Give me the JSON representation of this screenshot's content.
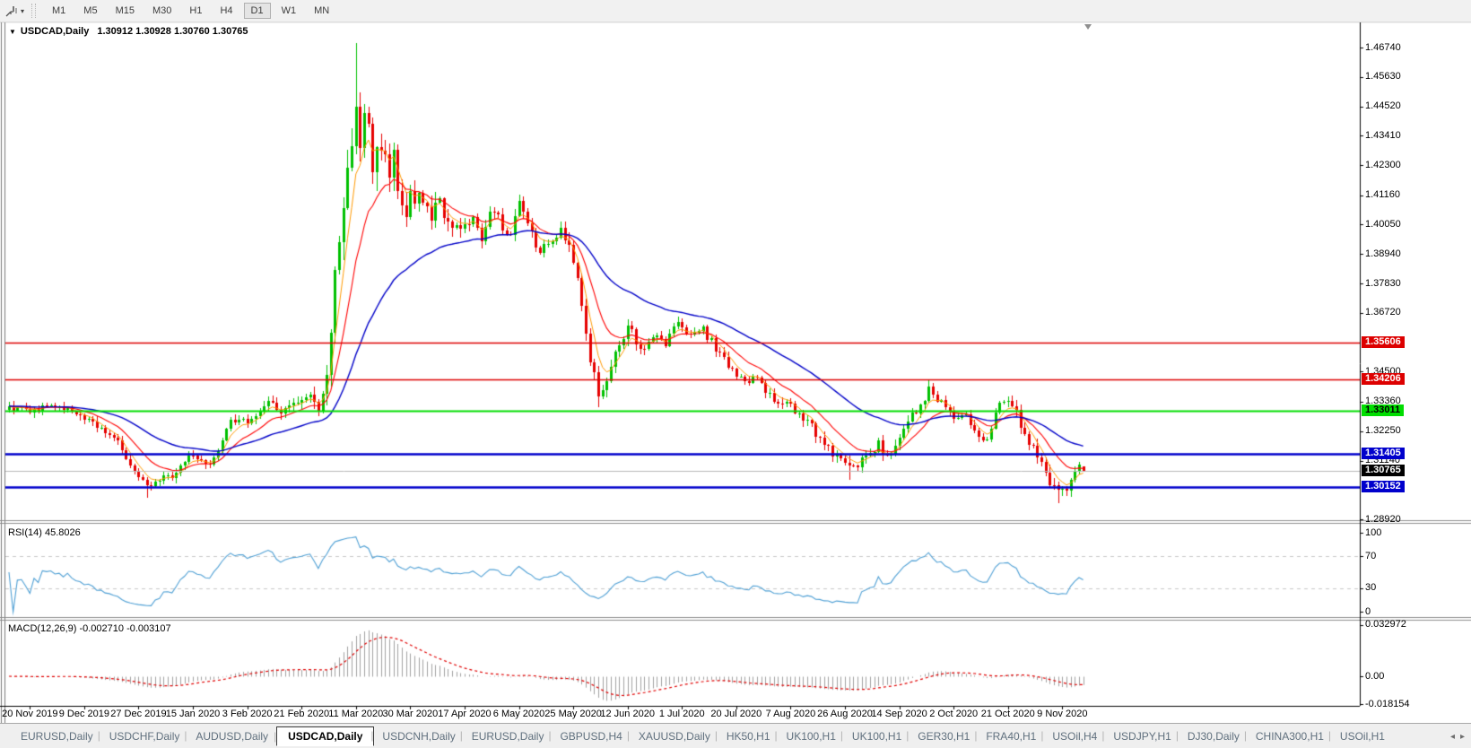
{
  "icons": {
    "title_caret": "▼",
    "toolbar_caret": "▾",
    "tab_scroll_left": "◂",
    "tab_scroll_right": "▸"
  },
  "toolbar": {
    "timeframes": [
      {
        "label": "M1",
        "active": false
      },
      {
        "label": "M5",
        "active": false
      },
      {
        "label": "M15",
        "active": false
      },
      {
        "label": "M30",
        "active": false
      },
      {
        "label": "H1",
        "active": false
      },
      {
        "label": "H4",
        "active": false
      },
      {
        "label": "D1",
        "active": true
      },
      {
        "label": "W1",
        "active": false
      },
      {
        "label": "MN",
        "active": false
      }
    ]
  },
  "chart": {
    "title": "USDCAD,Daily",
    "ohlc": "1.30912 1.30928 1.30760 1.30765",
    "price_axis": {
      "ticks": [
        "1.46740",
        "1.45630",
        "1.44520",
        "1.43410",
        "1.42300",
        "1.41160",
        "1.40050",
        "1.38940",
        "1.37830",
        "1.36720",
        "1.34500",
        "1.33360",
        "1.32250",
        "1.31140",
        "1.28920"
      ],
      "tags": [
        {
          "label": "1.35606",
          "bg": "#dd0000",
          "fg": "#ffffff"
        },
        {
          "label": "1.34206",
          "bg": "#dd0000",
          "fg": "#ffffff"
        },
        {
          "label": "1.33011",
          "bg": "#00dd00",
          "fg": "#000000"
        },
        {
          "label": "1.31405",
          "bg": "#0000cc",
          "fg": "#ffffff"
        },
        {
          "label": "1.30765",
          "bg": "#000000",
          "fg": "#ffffff"
        },
        {
          "label": "1.30152",
          "bg": "#0000cc",
          "fg": "#ffffff"
        }
      ]
    },
    "rsi": {
      "label": "RSI(14) 45.8026",
      "ticks": [
        "100",
        "70",
        "30",
        "0"
      ]
    },
    "macd": {
      "label": "MACD(12,26,9) -0.002710 -0.003107",
      "ticks": [
        "0.032972",
        "0.00",
        "-0.018154"
      ]
    },
    "date_axis": [
      "20 Nov 2019",
      "9 Dec 2019",
      "27 Dec 2019",
      "15 Jan 2020",
      "3 Feb 2020",
      "21 Feb 2020",
      "11 Mar 2020",
      "30 Mar 2020",
      "17 Apr 2020",
      "6 May 2020",
      "25 May 2020",
      "12 Jun 2020",
      "1 Jul 2020",
      "20 Jul 2020",
      "7 Aug 2020",
      "26 Aug 2020",
      "14 Sep 2020",
      "2 Oct 2020",
      "21 Oct 2020",
      "9 Nov 2020"
    ]
  },
  "tabs": {
    "items": [
      {
        "label": "EURUSD,Daily",
        "active": false
      },
      {
        "label": "USDCHF,Daily",
        "active": false
      },
      {
        "label": "AUDUSD,Daily",
        "active": false
      },
      {
        "label": "USDCAD,Daily",
        "active": true
      },
      {
        "label": "USDCNH,Daily",
        "active": false
      },
      {
        "label": "EURUSD,Daily",
        "active": false
      },
      {
        "label": "GBPUSD,H4",
        "active": false
      },
      {
        "label": "XAUUSD,Daily",
        "active": false
      },
      {
        "label": "HK50,H1",
        "active": false
      },
      {
        "label": "UK100,H1",
        "active": false
      },
      {
        "label": "UK100,H1",
        "active": false
      },
      {
        "label": "GER30,H1",
        "active": false
      },
      {
        "label": "FRA40,H1",
        "active": false
      },
      {
        "label": "USOil,H4",
        "active": false
      },
      {
        "label": "USDJPY,H1",
        "active": false
      },
      {
        "label": "DJ30,Daily",
        "active": false
      },
      {
        "label": "CHINA300,H1",
        "active": false
      },
      {
        "label": "USOil,H1",
        "active": false
      }
    ]
  },
  "chart_data": {
    "type": "candlestick",
    "symbol": "USDCAD",
    "timeframe": "Daily",
    "current_bar": {
      "open": 1.30912,
      "high": 1.30928,
      "low": 1.3076,
      "close": 1.30765
    },
    "price_axis_range": [
      1.2892,
      1.4674
    ],
    "up_color": "#00c000",
    "down_color": "#e60000",
    "horizontal_lines": [
      {
        "price": 1.35606,
        "color": "#dd0000",
        "width": 1.6
      },
      {
        "price": 1.34206,
        "color": "#dd0000",
        "width": 1.6
      },
      {
        "price": 1.33011,
        "color": "#00dd00",
        "width": 2
      },
      {
        "price": 1.31405,
        "color": "#0000cc",
        "width": 2.4
      },
      {
        "price": 1.30152,
        "color": "#0000cc",
        "width": 2.4
      }
    ],
    "moving_averages": [
      {
        "period": 5,
        "color": "#ff9900"
      },
      {
        "period": 13,
        "color": "#ff0000"
      },
      {
        "period": 40,
        "color": "#0000c8"
      }
    ],
    "indicators": {
      "rsi": {
        "period": 14,
        "value": 45.8026,
        "levels": [
          70,
          30
        ],
        "color": "#4e9fd4"
      },
      "macd": {
        "fast": 12,
        "slow": 26,
        "signal": 9,
        "value": -0.00271,
        "signal_value": -0.003107,
        "axis_max": 0.032972,
        "axis_min": -0.018154,
        "hist_color": "#a0a0a0",
        "signal_color": "#e00000"
      }
    },
    "candle_count": 258,
    "close_anchors": [
      [
        0,
        1.332
      ],
      [
        6,
        1.3305
      ],
      [
        10,
        1.333
      ],
      [
        15,
        1.33
      ],
      [
        19,
        1.3262
      ],
      [
        24,
        1.321
      ],
      [
        27,
        1.316
      ],
      [
        30,
        1.3065
      ],
      [
        33,
        1.3005
      ],
      [
        36,
        1.304
      ],
      [
        39,
        1.3055
      ],
      [
        43,
        1.312
      ],
      [
        48,
        1.3105
      ],
      [
        53,
        1.3255
      ],
      [
        57,
        1.327
      ],
      [
        62,
        1.333
      ],
      [
        66,
        1.33
      ],
      [
        69,
        1.334
      ],
      [
        72,
        1.336
      ],
      [
        74,
        1.329
      ],
      [
        76,
        1.342
      ],
      [
        78,
        1.379
      ],
      [
        79,
        1.392
      ],
      [
        82,
        1.435
      ],
      [
        83,
        1.451
      ],
      [
        84,
        1.428
      ],
      [
        85,
        1.446
      ],
      [
        87,
        1.418
      ],
      [
        89,
        1.433
      ],
      [
        91,
        1.416
      ],
      [
        92,
        1.428
      ],
      [
        94,
        1.406
      ],
      [
        98,
        1.413
      ],
      [
        101,
        1.402
      ],
      [
        103,
        1.409
      ],
      [
        104,
        1.4056
      ],
      [
        107,
        1.398
      ],
      [
        111,
        1.401
      ],
      [
        113,
        1.393
      ],
      [
        115,
        1.405
      ],
      [
        117,
        1.403
      ],
      [
        120,
        1.395
      ],
      [
        122,
        1.408
      ],
      [
        124,
        1.402
      ],
      [
        127,
        1.39
      ],
      [
        130,
        1.3947
      ],
      [
        132,
        1.398
      ],
      [
        135,
        1.388
      ],
      [
        138,
        1.357
      ],
      [
        140,
        1.342
      ],
      [
        141,
        1.3345
      ],
      [
        143,
        1.343
      ],
      [
        146,
        1.355
      ],
      [
        148,
        1.362
      ],
      [
        150,
        1.357
      ],
      [
        152,
        1.353
      ],
      [
        154,
        1.359
      ],
      [
        157,
        1.356
      ],
      [
        160,
        1.363
      ],
      [
        163,
        1.358
      ],
      [
        166,
        1.361
      ],
      [
        168,
        1.356
      ],
      [
        170,
        1.351
      ],
      [
        173,
        1.345
      ],
      [
        176,
        1.34
      ],
      [
        179,
        1.342
      ],
      [
        181,
        1.338
      ],
      [
        184,
        1.333
      ],
      [
        186,
        1.335
      ],
      [
        188,
        1.33
      ],
      [
        191,
        1.326
      ],
      [
        193,
        1.322
      ],
      [
        197,
        1.314
      ],
      [
        199,
        1.3105
      ],
      [
        201,
        1.3075
      ],
      [
        203,
        1.309
      ],
      [
        206,
        1.314
      ],
      [
        208,
        1.318
      ],
      [
        210,
        1.3125
      ],
      [
        212,
        1.316
      ],
      [
        214,
        1.322
      ],
      [
        217,
        1.331
      ],
      [
        220,
        1.338
      ],
      [
        222,
        1.335
      ],
      [
        224,
        1.331
      ],
      [
        226,
        1.327
      ],
      [
        228,
        1.33
      ],
      [
        230,
        1.325
      ],
      [
        232,
        1.32
      ],
      [
        234,
        1.318
      ],
      [
        236,
        1.331
      ],
      [
        238,
        1.335
      ],
      [
        240,
        1.332
      ],
      [
        242,
        1.325
      ],
      [
        245,
        1.315
      ],
      [
        247,
        1.312
      ],
      [
        248,
        1.308
      ],
      [
        250,
        1.2998
      ],
      [
        251,
        1.2978
      ],
      [
        252,
        1.299
      ],
      [
        253,
        1.301
      ],
      [
        254,
        1.305
      ],
      [
        256,
        1.309
      ],
      [
        257,
        1.3077
      ]
    ],
    "volatility_anchors": [
      [
        0,
        0.0035
      ],
      [
        62,
        0.0035
      ],
      [
        72,
        0.005
      ],
      [
        76,
        0.009
      ],
      [
        80,
        0.013
      ],
      [
        86,
        0.016
      ],
      [
        92,
        0.011
      ],
      [
        101,
        0.008
      ],
      [
        111,
        0.006
      ],
      [
        121,
        0.0055
      ],
      [
        132,
        0.005
      ],
      [
        138,
        0.007
      ],
      [
        143,
        0.006
      ],
      [
        152,
        0.004
      ],
      [
        173,
        0.0035
      ],
      [
        193,
        0.004
      ],
      [
        203,
        0.0045
      ],
      [
        214,
        0.004
      ],
      [
        228,
        0.0035
      ],
      [
        238,
        0.004
      ],
      [
        250,
        0.006
      ],
      [
        254,
        0.004
      ],
      [
        257,
        0.0017
      ]
    ],
    "key_extremes": {
      "33": {
        "low": 1.2975
      },
      "83": {
        "high": 1.469
      },
      "141": {
        "low": 1.3315
      },
      "201": {
        "low": 1.304
      },
      "220": {
        "high": 1.3421
      },
      "251": {
        "low": 1.2952
      }
    }
  }
}
